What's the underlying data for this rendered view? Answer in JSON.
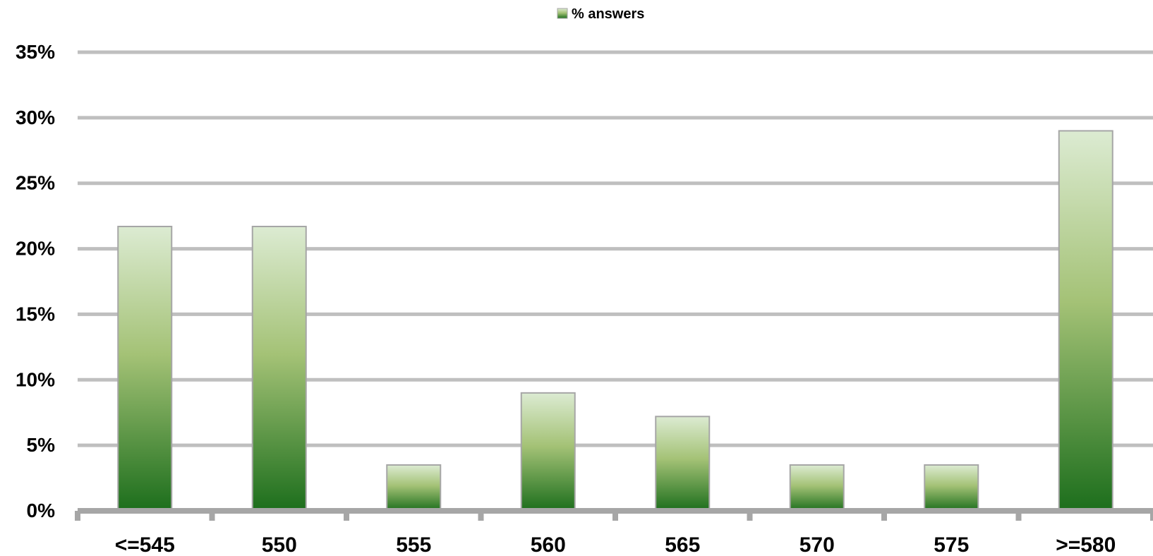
{
  "chart_data": {
    "type": "bar",
    "title": "",
    "xlabel": "",
    "ylabel": "",
    "categories": [
      "<=545",
      "550",
      "555",
      "560",
      "565",
      "570",
      "575",
      ">=580"
    ],
    "series": [
      {
        "name": "% answers",
        "values": [
          21.7,
          21.7,
          3.5,
          9.0,
          7.2,
          3.5,
          3.5,
          29.0
        ]
      }
    ],
    "ylim": [
      0,
      35
    ],
    "ytick_values": [
      0,
      5,
      10,
      15,
      20,
      25,
      30,
      35
    ],
    "ytick_labels": [
      "0%",
      "5%",
      "10%",
      "15%",
      "20%",
      "25%",
      "30%",
      "35%"
    ],
    "grid": true,
    "legend_position": "top-center",
    "colors": {
      "bar_top": "#dcebd2",
      "bar_mid": "#a4c276",
      "bar_bottom": "#1c6e1c",
      "bar_border": "#a6a6a6",
      "gridline": "#bfbfbf",
      "axis": "#a6a6a6"
    }
  }
}
